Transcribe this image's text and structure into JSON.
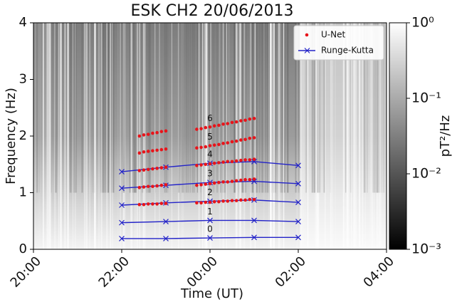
{
  "chart_data": {
    "type": "spectrogram",
    "title": "ESK CH2 20/06/2013",
    "xlabel": "Time (UT)",
    "ylabel": "Frequency (Hz)",
    "xlim": [
      20,
      28
    ],
    "xticks": [
      {
        "value": 20,
        "label": "20:00"
      },
      {
        "value": 22,
        "label": "22:00"
      },
      {
        "value": 24,
        "label": "00:00"
      },
      {
        "value": 26,
        "label": "02:00"
      },
      {
        "value": 28,
        "label": "04:00"
      }
    ],
    "ylim": [
      0,
      4
    ],
    "yticks": [
      0,
      1,
      2,
      3,
      4
    ],
    "colorbar": {
      "label": "pT²/Hz",
      "log": true,
      "clim": [
        0.001,
        1
      ],
      "ticks": [
        {
          "value": 1,
          "label": "10⁰"
        },
        {
          "value": 0.1,
          "label": "10⁻¹"
        },
        {
          "value": 0.01,
          "label": "10⁻²"
        },
        {
          "value": 0.001,
          "label": "10⁻³"
        }
      ]
    },
    "legend": "upper right",
    "series": [
      {
        "name": "U-Net",
        "color": "#e8141a",
        "x": [
          22.4,
          22.5,
          22.6,
          22.7,
          22.8,
          22.9,
          23.0,
          23.7,
          23.8,
          23.9,
          24.0,
          24.1,
          24.2,
          24.3,
          24.4,
          24.5,
          24.6,
          24.7,
          24.8,
          24.9,
          25.0
        ]
      },
      {
        "name": "Runge-Kutta",
        "color": "#2323c8",
        "x": [
          22,
          23,
          24,
          25,
          26
        ]
      }
    ],
    "modes": [
      {
        "label": "0",
        "runge_kutta": [
          0.19,
          0.19,
          0.2,
          0.21,
          0.21
        ]
      },
      {
        "label": "1",
        "runge_kutta": [
          0.47,
          0.49,
          0.51,
          0.51,
          0.49
        ]
      },
      {
        "label": "2",
        "runge_kutta": [
          0.78,
          0.82,
          0.85,
          0.87,
          0.83
        ],
        "unet": [
          0.79,
          0.79,
          0.8,
          0.8,
          0.8,
          0.81,
          0.81,
          0.82,
          0.82,
          0.83,
          0.83,
          0.84,
          0.84,
          0.85,
          0.85,
          0.86,
          0.86,
          0.87,
          0.87,
          0.88,
          0.88
        ]
      },
      {
        "label": "3",
        "runge_kutta": [
          1.08,
          1.13,
          1.18,
          1.2,
          1.16
        ],
        "unet": [
          1.09,
          1.1,
          1.11,
          1.11,
          1.12,
          1.13,
          1.14,
          1.13,
          1.14,
          1.15,
          1.16,
          1.17,
          1.18,
          1.19,
          1.19,
          1.2,
          1.21,
          1.22,
          1.23,
          1.23,
          1.24
        ]
      },
      {
        "label": "4",
        "runge_kutta": [
          1.37,
          1.45,
          1.52,
          1.55,
          1.48
        ],
        "unet": [
          1.39,
          1.4,
          1.41,
          1.42,
          1.43,
          1.44,
          1.45,
          1.48,
          1.49,
          1.5,
          1.51,
          1.52,
          1.53,
          1.54,
          1.55,
          1.55,
          1.56,
          1.57,
          1.58,
          1.58,
          1.59
        ]
      },
      {
        "label": "5",
        "unet": [
          1.7,
          1.72,
          1.73,
          1.74,
          1.75,
          1.76,
          1.77,
          1.79,
          1.8,
          1.81,
          1.83,
          1.84,
          1.85,
          1.87,
          1.88,
          1.9,
          1.91,
          1.93,
          1.94,
          1.96,
          1.97
        ]
      },
      {
        "label": "6",
        "unet": [
          2.0,
          2.02,
          2.03,
          2.05,
          2.06,
          2.08,
          2.09,
          2.12,
          2.13,
          2.15,
          2.16,
          2.18,
          2.19,
          2.21,
          2.22,
          2.24,
          2.25,
          2.27,
          2.28,
          2.3,
          2.31
        ]
      }
    ]
  }
}
